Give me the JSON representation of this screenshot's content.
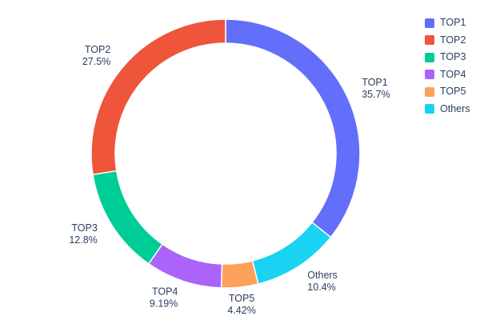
{
  "chart_data": {
    "type": "pie",
    "subtype": "donut",
    "title": "",
    "hole": 0.82,
    "labels": [
      "TOP1",
      "TOP2",
      "TOP3",
      "TOP4",
      "TOP5",
      "Others"
    ],
    "values": [
      35.7,
      27.5,
      12.8,
      9.19,
      4.42,
      10.4
    ],
    "percent_labels": [
      "35.7%",
      "27.5%",
      "12.8%",
      "9.19%",
      "4.42%",
      "10.4%"
    ],
    "colors": [
      "#636EFA",
      "#EF553B",
      "#00CC96",
      "#AB63FA",
      "#FFA15A",
      "#19D3F3"
    ],
    "display_order_clockwise_from_top": [
      "TOP1",
      "Others",
      "TOP5",
      "TOP4",
      "TOP3",
      "TOP2"
    ],
    "outside_labels": true,
    "legend": {
      "position": "top-right",
      "entries": [
        "TOP1",
        "TOP2",
        "TOP3",
        "TOP4",
        "TOP5",
        "Others"
      ]
    },
    "text_color": "#2a3f5f",
    "background": "#ffffff"
  }
}
